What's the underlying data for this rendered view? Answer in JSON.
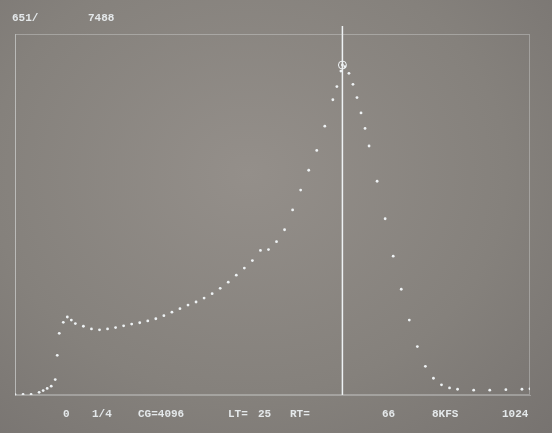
{
  "chart_data": {
    "type": "scatter",
    "annotations": [
      "651/",
      "7488",
      "0",
      "1/4",
      "CG=4096",
      "LT=",
      "25",
      "RT=",
      "66",
      "8KFS",
      "1024"
    ],
    "x": [
      0,
      16,
      32,
      48,
      56,
      64,
      72,
      80,
      84,
      88,
      96,
      104,
      112,
      120,
      136,
      152,
      168,
      184,
      200,
      216,
      232,
      248,
      264,
      280,
      296,
      312,
      328,
      344,
      360,
      376,
      392,
      408,
      424,
      440,
      456,
      472,
      488,
      504,
      520,
      536,
      552,
      568,
      584,
      600,
      616,
      632,
      640,
      648,
      651,
      656,
      664,
      672,
      680,
      688,
      696,
      704,
      720,
      736,
      752,
      768,
      784,
      800,
      816,
      832,
      848,
      864,
      880,
      912,
      944,
      976,
      1008,
      1024
    ],
    "values": [
      10,
      12,
      15,
      60,
      100,
      150,
      200,
      350,
      900,
      1400,
      1650,
      1770,
      1700,
      1620,
      1560,
      1500,
      1480,
      1500,
      1530,
      1570,
      1610,
      1640,
      1680,
      1730,
      1800,
      1880,
      1960,
      2040,
      2110,
      2200,
      2300,
      2420,
      2560,
      2720,
      2880,
      3050,
      3280,
      3300,
      3480,
      3750,
      4200,
      4650,
      5100,
      5550,
      6100,
      6700,
      7000,
      7350,
      7488,
      7450,
      7300,
      7050,
      6750,
      6400,
      6050,
      5650,
      4850,
      4000,
      3150,
      2400,
      1700,
      1100,
      650,
      380,
      230,
      160,
      130,
      110,
      110,
      120,
      130,
      140
    ],
    "cursor": {
      "x": 651,
      "y": 7488
    },
    "color": "#eef2f4",
    "marker": "dot",
    "xlim": [
      0,
      1024
    ],
    "ylim": [
      0,
      8192
    ],
    "grid": false,
    "tick_labels": false
  }
}
